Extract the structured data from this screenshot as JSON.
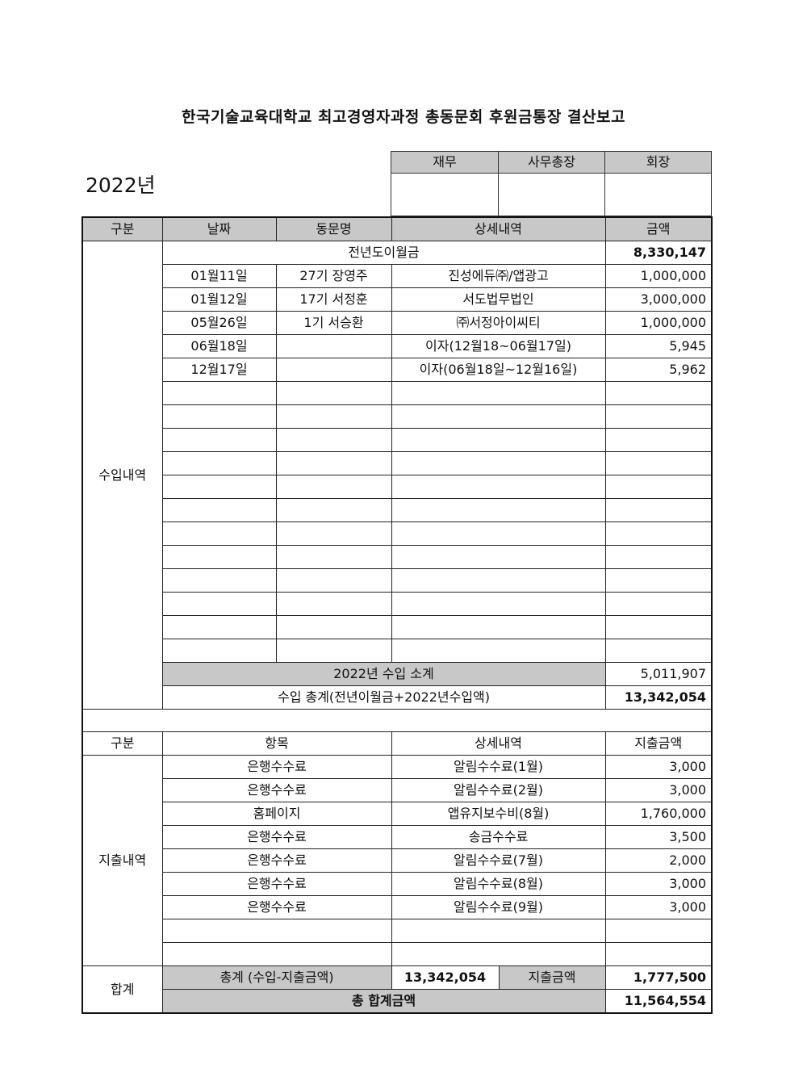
{
  "title": "한국기술교육대학교 최고경영자과정 총동문회 후원금통장 결산보고",
  "year": "2022년",
  "approval": {
    "headers": [
      "재무",
      "사무총장",
      "회장"
    ]
  },
  "income": {
    "headers": [
      "구분",
      "날짜",
      "동문명",
      "상세내역",
      "금액"
    ],
    "section_label": "수입내역",
    "carryover": {
      "label": "전년도이월금",
      "amount": "8,330,147"
    },
    "rows": [
      {
        "date": "01월11일",
        "name": "27기 장영주",
        "detail": "진성에듀㈜/앱광고",
        "amount": "1,000,000"
      },
      {
        "date": "01월12일",
        "name": "17기 서정훈",
        "detail": "서도법무법인",
        "amount": "3,000,000"
      },
      {
        "date": "05월26일",
        "name": "1기  서승환",
        "detail": "㈜서정아이씨티",
        "amount": "1,000,000"
      },
      {
        "date": "06월18일",
        "name": "",
        "detail": "이자(12월18~06월17일)",
        "amount": "5,945"
      },
      {
        "date": "12월17일",
        "name": "",
        "detail": "이자(06월18일~12월16일)",
        "amount": "5,962"
      }
    ],
    "subtotal": {
      "label": "2022년 수입 소계",
      "amount": "5,011,907"
    },
    "total": {
      "label": "수입 총계(전년이월금+2022년수입액)",
      "amount": "13,342,054"
    }
  },
  "expense": {
    "headers": [
      "구분",
      "항목",
      "상세내역",
      "지출금액"
    ],
    "section_label": "지출내역",
    "rows": [
      {
        "item": "은행수수료",
        "detail": "알림수수료(1월)",
        "amount": "3,000"
      },
      {
        "item": "은행수수료",
        "detail": "알림수수료(2월)",
        "amount": "3,000"
      },
      {
        "item": "홈페이지",
        "detail": "앱유지보수비(8월)",
        "amount": "1,760,000"
      },
      {
        "item": "은행수수료",
        "detail": "송금수수료",
        "amount": "3,500"
      },
      {
        "item": "은행수수료",
        "detail": "알림수수료(7월)",
        "amount": "2,000"
      },
      {
        "item": "은행수수료",
        "detail": "알림수수료(8월)",
        "amount": "3,000"
      },
      {
        "item": "은행수수료",
        "detail": "알림수수료(9월)",
        "amount": "3,000"
      }
    ]
  },
  "summary": {
    "section_label": "합계",
    "net_label": "총계 (수입-지출금액)",
    "net_amount": "13,342,054",
    "expense_label": "지출금액",
    "expense_amount": "1,777,500",
    "grand_label": "총 합계금액",
    "grand_amount": "11,564,554"
  }
}
